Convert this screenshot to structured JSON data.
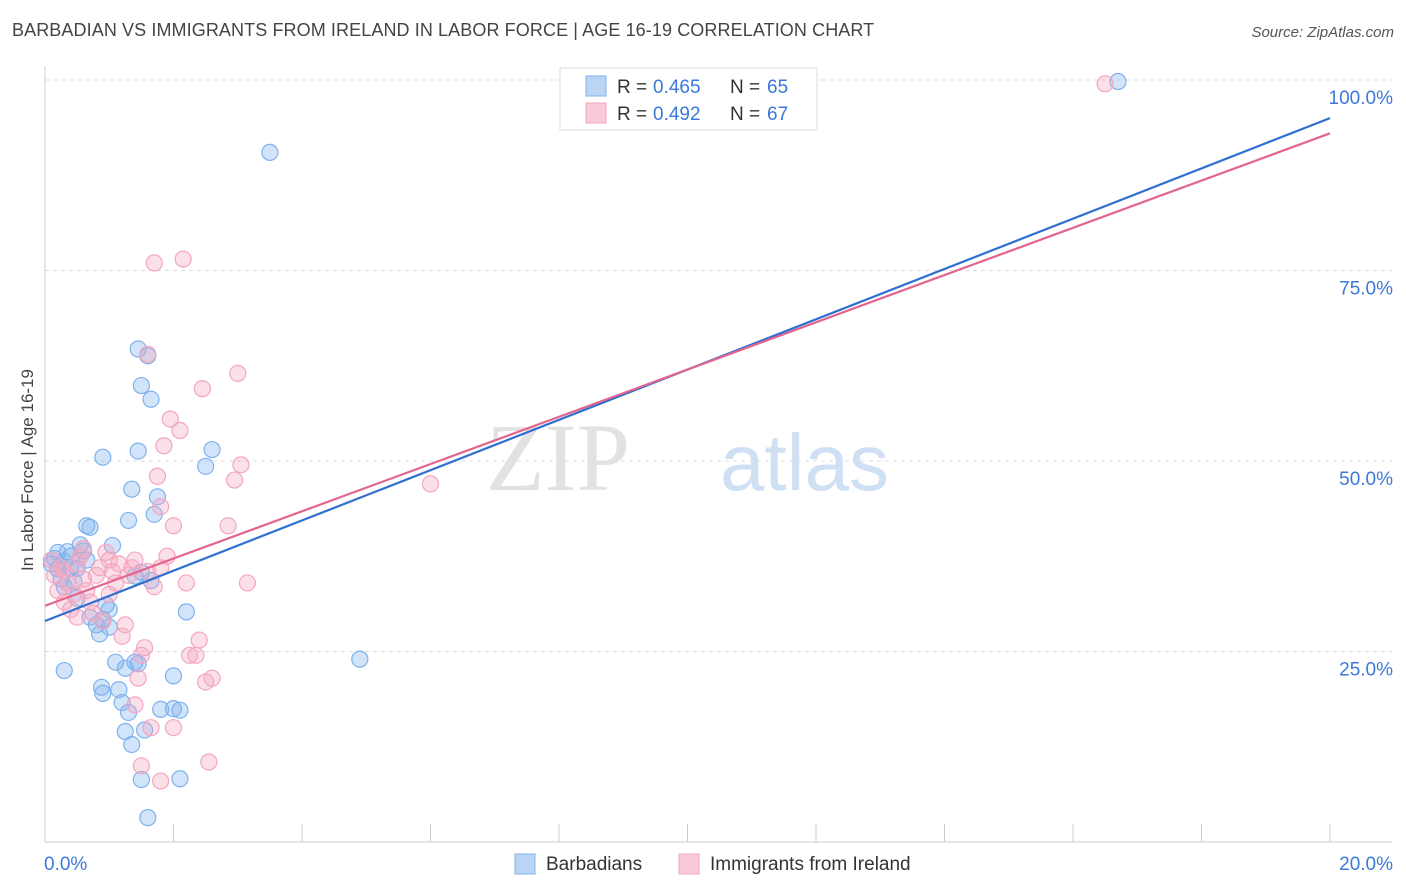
{
  "chart_data": {
    "type": "scatter",
    "title": "BARBADIAN VS IMMIGRANTS FROM IRELAND IN LABOR FORCE | AGE 16-19 CORRELATION CHART",
    "source": "Source: ZipAtlas.com",
    "xlabel": "",
    "ylabel": "In Labor Force | Age 16-19",
    "xlim": [
      0,
      20
    ],
    "ylim": [
      0,
      100
    ],
    "x_tick_labels": [
      {
        "value": 0,
        "label": "0.0%"
      },
      {
        "value": 20,
        "label": "20.0%"
      }
    ],
    "y_tick_labels": [
      {
        "value": 25,
        "label": "25.0%"
      },
      {
        "value": 50,
        "label": "50.0%"
      },
      {
        "value": 75,
        "label": "75.0%"
      },
      {
        "value": 100,
        "label": "100.0%"
      }
    ],
    "watermark": {
      "zip": "ZIP",
      "atlas": "atlas"
    },
    "legend_top": [
      {
        "r_label": "R =",
        "r_value": "0.465",
        "n_label": "N =",
        "n_value": "65"
      },
      {
        "r_label": "R =",
        "r_value": "0.492",
        "n_label": "N =",
        "n_value": "67"
      }
    ],
    "series": [
      {
        "name": "Barbadians",
        "color": "#7eb2ee",
        "line_color": "#2f6fd1",
        "trend": {
          "x0": 0,
          "y0": 29.0,
          "x1": 20,
          "y1": 95.0
        },
        "points": [
          [
            0.1,
            36.5
          ],
          [
            0.15,
            37.2
          ],
          [
            0.2,
            35.8
          ],
          [
            0.25,
            34.5
          ],
          [
            0.3,
            36.8
          ],
          [
            0.35,
            38.1
          ],
          [
            0.4,
            37.5
          ],
          [
            0.45,
            34.2
          ],
          [
            0.5,
            35.9
          ],
          [
            0.55,
            39.0
          ],
          [
            0.6,
            38.2
          ],
          [
            0.65,
            37.0
          ],
          [
            0.7,
            41.3
          ],
          [
            0.65,
            41.5
          ],
          [
            0.3,
            22.5
          ],
          [
            0.8,
            28.5
          ],
          [
            0.85,
            27.3
          ],
          [
            0.9,
            29.2
          ],
          [
            0.95,
            31.1
          ],
          [
            1.0,
            28.2
          ],
          [
            0.9,
            50.5
          ],
          [
            1.05,
            38.9
          ],
          [
            1.1,
            23.6
          ],
          [
            1.15,
            20.0
          ],
          [
            1.2,
            18.3
          ],
          [
            1.25,
            14.5
          ],
          [
            1.3,
            17.0
          ],
          [
            1.35,
            12.8
          ],
          [
            0.88,
            20.3
          ],
          [
            0.9,
            19.5
          ],
          [
            1.25,
            22.8
          ],
          [
            1.4,
            23.6
          ],
          [
            1.45,
            23.4
          ],
          [
            1.5,
            8.2
          ],
          [
            1.55,
            14.7
          ],
          [
            1.6,
            3.2
          ],
          [
            1.65,
            34.3
          ],
          [
            1.4,
            34.9
          ],
          [
            1.5,
            35.4
          ],
          [
            1.7,
            43.0
          ],
          [
            1.75,
            45.3
          ],
          [
            1.8,
            17.4
          ],
          [
            1.5,
            59.9
          ],
          [
            1.65,
            58.1
          ],
          [
            1.6,
            63.8
          ],
          [
            1.45,
            64.7
          ],
          [
            1.45,
            51.3
          ],
          [
            1.3,
            42.2
          ],
          [
            1.35,
            46.3
          ],
          [
            2.0,
            21.8
          ],
          [
            2.1,
            17.3
          ],
          [
            2.0,
            17.5
          ],
          [
            2.1,
            8.3
          ],
          [
            2.2,
            30.2
          ],
          [
            2.5,
            49.3
          ],
          [
            2.6,
            51.5
          ],
          [
            3.5,
            90.5
          ],
          [
            4.9,
            24.0
          ],
          [
            16.7,
            99.8
          ],
          [
            0.3,
            33.5
          ],
          [
            0.5,
            32.0
          ],
          [
            0.7,
            29.5
          ],
          [
            1.0,
            30.5
          ],
          [
            0.2,
            38.0
          ],
          [
            0.4,
            36.0
          ]
        ]
      },
      {
        "name": "Immigrants from Ireland",
        "color": "#f4a6bf",
        "line_color": "#e3658e",
        "trend": {
          "x0": 0,
          "y0": 31.0,
          "x1": 20,
          "y1": 93.0
        },
        "points": [
          [
            0.1,
            37.0
          ],
          [
            0.15,
            35.0
          ],
          [
            0.2,
            33.0
          ],
          [
            0.25,
            36.0
          ],
          [
            0.3,
            35.5
          ],
          [
            0.35,
            34.0
          ],
          [
            0.4,
            30.5
          ],
          [
            0.45,
            32.5
          ],
          [
            0.5,
            36.5
          ],
          [
            0.55,
            37.5
          ],
          [
            0.6,
            34.5
          ],
          [
            0.65,
            33.0
          ],
          [
            0.7,
            31.5
          ],
          [
            0.75,
            30.0
          ],
          [
            0.8,
            35.0
          ],
          [
            0.85,
            36.0
          ],
          [
            0.9,
            29.0
          ],
          [
            0.95,
            38.0
          ],
          [
            1.0,
            37.0
          ],
          [
            1.05,
            35.5
          ],
          [
            1.1,
            34.0
          ],
          [
            1.15,
            36.5
          ],
          [
            1.2,
            27.0
          ],
          [
            1.25,
            28.5
          ],
          [
            1.3,
            35.0
          ],
          [
            1.35,
            36.0
          ],
          [
            1.4,
            37.0
          ],
          [
            1.45,
            21.5
          ],
          [
            1.5,
            24.5
          ],
          [
            1.55,
            25.5
          ],
          [
            1.6,
            35.5
          ],
          [
            1.7,
            33.5
          ],
          [
            1.75,
            48.0
          ],
          [
            1.8,
            44.0
          ],
          [
            1.85,
            52.0
          ],
          [
            1.9,
            37.5
          ],
          [
            1.95,
            55.5
          ],
          [
            2.0,
            41.5
          ],
          [
            2.1,
            54.0
          ],
          [
            2.2,
            34.0
          ],
          [
            2.25,
            24.5
          ],
          [
            2.35,
            24.5
          ],
          [
            2.4,
            26.5
          ],
          [
            2.5,
            21.0
          ],
          [
            2.55,
            10.5
          ],
          [
            2.6,
            21.5
          ],
          [
            1.6,
            64.0
          ],
          [
            2.15,
            76.5
          ],
          [
            1.7,
            76.0
          ],
          [
            2.45,
            59.5
          ],
          [
            3.0,
            61.5
          ],
          [
            2.95,
            47.5
          ],
          [
            3.05,
            49.5
          ],
          [
            2.85,
            41.5
          ],
          [
            3.15,
            34.0
          ],
          [
            1.4,
            18.0
          ],
          [
            1.5,
            10.0
          ],
          [
            1.65,
            15.0
          ],
          [
            1.8,
            8.0
          ],
          [
            2.0,
            15.0
          ],
          [
            6.0,
            47.0
          ],
          [
            16.5,
            99.5
          ],
          [
            0.3,
            31.5
          ],
          [
            0.6,
            38.5
          ],
          [
            1.0,
            32.5
          ],
          [
            1.8,
            36.0
          ],
          [
            0.5,
            29.5
          ]
        ]
      }
    ]
  }
}
